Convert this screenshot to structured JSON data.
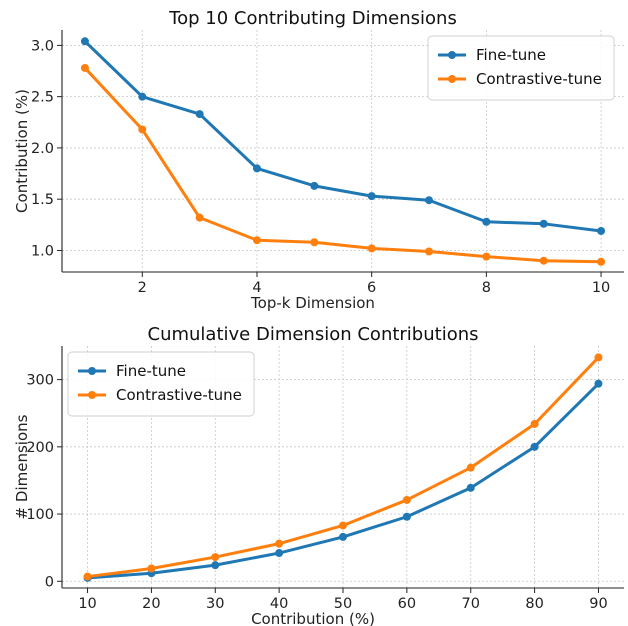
{
  "chart_data": [
    {
      "type": "line",
      "title": "Top 10 Contributing Dimensions",
      "xlabel": "Top-k Dimension",
      "ylabel": "Contribution (%)",
      "x": [
        1,
        2,
        3,
        4,
        5,
        6,
        7,
        8,
        9,
        10
      ],
      "xlim": [
        0.6,
        10.4
      ],
      "ylim": [
        0.79,
        3.15
      ],
      "xticks": [
        2,
        4,
        6,
        8,
        10
      ],
      "yticks": [
        1.0,
        1.5,
        2.0,
        2.5,
        3.0
      ],
      "ytick_labels": [
        "1.0",
        "1.5",
        "2.0",
        "2.5",
        "3.0"
      ],
      "grid": true,
      "legend_position": "top-right",
      "series": [
        {
          "name": "Fine-tune",
          "color": "#1f77b4",
          "values": [
            3.04,
            2.5,
            2.33,
            1.8,
            1.63,
            1.53,
            1.49,
            1.28,
            1.26,
            1.19
          ]
        },
        {
          "name": "Contrastive-tune",
          "color": "#ff7f0e",
          "values": [
            2.78,
            2.18,
            1.32,
            1.1,
            1.08,
            1.02,
            0.99,
            0.94,
            0.9,
            0.89
          ]
        }
      ]
    },
    {
      "type": "line",
      "title": "Cumulative Dimension Contributions",
      "xlabel": "Contribution (%)",
      "ylabel": "# Dimensions",
      "x": [
        10,
        20,
        30,
        40,
        50,
        60,
        70,
        80,
        90
      ],
      "xlim": [
        6,
        94
      ],
      "ylim": [
        -10,
        350
      ],
      "xticks": [
        10,
        20,
        30,
        40,
        50,
        60,
        70,
        80,
        90
      ],
      "yticks": [
        0,
        100,
        200,
        300
      ],
      "ytick_labels": [
        "0",
        "100",
        "200",
        "300"
      ],
      "grid": true,
      "legend_position": "top-left",
      "series": [
        {
          "name": "Fine-tune",
          "color": "#1f77b4",
          "values": [
            5,
            12,
            24,
            42,
            66,
            96,
            139,
            200,
            294
          ]
        },
        {
          "name": "Contrastive-tune",
          "color": "#ff7f0e",
          "values": [
            7,
            19,
            36,
            56,
            83,
            121,
            169,
            234,
            333
          ]
        }
      ]
    }
  ]
}
